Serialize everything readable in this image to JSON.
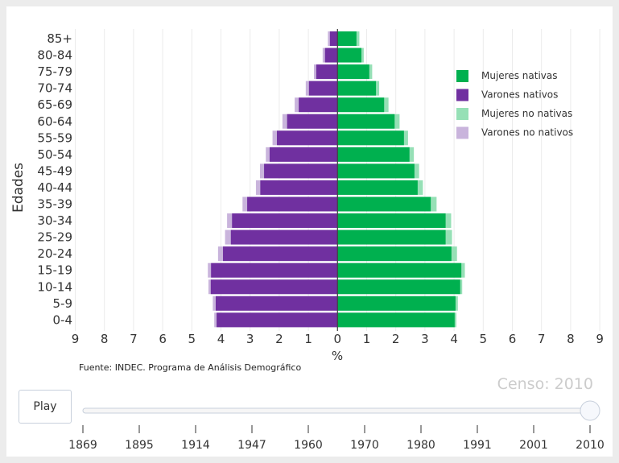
{
  "chart_data": {
    "type": "bar",
    "orientation": "horizontal population pyramid",
    "ylabel": "Edades",
    "xlabel": "%",
    "xlim": [
      -9,
      9
    ],
    "xticks": [
      "9",
      "8",
      "7",
      "6",
      "5",
      "4",
      "3",
      "2",
      "1",
      "0",
      "1",
      "2",
      "3",
      "4",
      "5",
      "6",
      "7",
      "8",
      "9"
    ],
    "categories": [
      "0-4",
      "5-9",
      "10-14",
      "15-19",
      "20-24",
      "25-29",
      "30-34",
      "35-39",
      "40-44",
      "45-49",
      "50-54",
      "55-59",
      "60-64",
      "65-69",
      "70-74",
      "75-79",
      "80-84",
      "85+"
    ],
    "series": [
      {
        "name": "Mujeres nativas",
        "color": "#00b04f",
        "values": [
          4.02,
          4.05,
          4.21,
          4.25,
          3.91,
          3.71,
          3.71,
          3.2,
          2.75,
          2.64,
          2.47,
          2.28,
          1.96,
          1.6,
          1.32,
          1.09,
          0.82,
          0.65
        ]
      },
      {
        "name": "Varones nativos",
        "color": "#7030a0",
        "values": [
          4.15,
          4.18,
          4.35,
          4.34,
          3.93,
          3.66,
          3.62,
          3.1,
          2.65,
          2.52,
          2.33,
          2.08,
          1.73,
          1.33,
          0.98,
          0.73,
          0.43,
          0.26
        ]
      },
      {
        "name": "Mujeres no nativas",
        "color": "#96e0b6",
        "values": [
          0.06,
          0.08,
          0.07,
          0.12,
          0.19,
          0.22,
          0.19,
          0.2,
          0.18,
          0.16,
          0.15,
          0.14,
          0.17,
          0.15,
          0.11,
          0.1,
          0.08,
          0.1
        ]
      },
      {
        "name": "Varones no nativos",
        "color": "#c9b4dc",
        "values": [
          0.08,
          0.1,
          0.08,
          0.11,
          0.17,
          0.2,
          0.17,
          0.16,
          0.15,
          0.14,
          0.13,
          0.15,
          0.16,
          0.14,
          0.11,
          0.08,
          0.08,
          0.07
        ]
      }
    ],
    "legend_position": "top-right",
    "source": "Fuente: INDEC. Programa de Análisis Demográfico",
    "annotation": "Censo: 2010"
  },
  "controls": {
    "play_label": "Play",
    "years": [
      "1869",
      "1895",
      "1914",
      "1947",
      "1960",
      "1970",
      "1980",
      "1991",
      "2001",
      "2010"
    ],
    "selected_year": "2010"
  }
}
